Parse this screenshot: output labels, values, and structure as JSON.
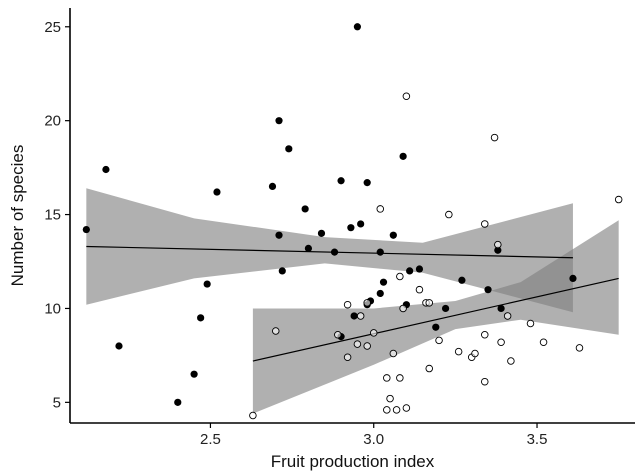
{
  "chart_data": {
    "type": "scatter",
    "xlabel": "Fruit production index",
    "ylabel": "Number of species",
    "xlim": [
      2.07,
      3.8
    ],
    "ylim": [
      3.9,
      26.0
    ],
    "x_ticks": [
      2.5,
      3.0,
      3.5
    ],
    "x_tick_labels": [
      "2.5",
      "3.0",
      "3.5"
    ],
    "y_ticks": [
      5,
      10,
      15,
      20,
      25
    ],
    "y_tick_labels": [
      "5",
      "10",
      "15",
      "20",
      "25"
    ],
    "grid": false,
    "legend": "none",
    "series": [
      {
        "marker": "filled-circle",
        "color": "#000000",
        "points": [
          [
            2.12,
            14.2
          ],
          [
            2.18,
            17.4
          ],
          [
            2.22,
            8.0
          ],
          [
            2.4,
            5.0
          ],
          [
            2.45,
            6.5
          ],
          [
            2.47,
            9.5
          ],
          [
            2.49,
            11.3
          ],
          [
            2.52,
            16.2
          ],
          [
            2.69,
            16.5
          ],
          [
            2.71,
            20.0
          ],
          [
            2.71,
            13.9
          ],
          [
            2.72,
            12.0
          ],
          [
            2.74,
            18.5
          ],
          [
            2.79,
            15.3
          ],
          [
            2.8,
            13.2
          ],
          [
            2.84,
            14.0
          ],
          [
            2.88,
            13.0
          ],
          [
            2.9,
            16.8
          ],
          [
            2.9,
            8.5
          ],
          [
            2.93,
            14.3
          ],
          [
            2.94,
            9.6
          ],
          [
            2.95,
            25.0
          ],
          [
            2.96,
            14.5
          ],
          [
            2.98,
            16.7
          ],
          [
            2.98,
            10.2
          ],
          [
            2.99,
            10.4
          ],
          [
            3.02,
            13.0
          ],
          [
            3.02,
            10.8
          ],
          [
            3.03,
            11.4
          ],
          [
            3.06,
            13.9
          ],
          [
            3.09,
            18.1
          ],
          [
            3.1,
            10.2
          ],
          [
            3.11,
            12.0
          ],
          [
            3.14,
            12.1
          ],
          [
            3.19,
            9.0
          ],
          [
            3.22,
            10.0
          ],
          [
            3.27,
            11.5
          ],
          [
            3.35,
            11.0
          ],
          [
            3.38,
            13.1
          ],
          [
            3.39,
            10.0
          ],
          [
            3.61,
            11.6
          ]
        ]
      },
      {
        "marker": "open-circle",
        "color": "#000000",
        "points": [
          [
            2.63,
            4.3
          ],
          [
            2.7,
            8.8
          ],
          [
            2.92,
            10.2
          ],
          [
            2.89,
            8.6
          ],
          [
            2.92,
            7.4
          ],
          [
            2.95,
            8.1
          ],
          [
            2.96,
            9.6
          ],
          [
            2.98,
            10.3
          ],
          [
            2.98,
            8.0
          ],
          [
            3.0,
            8.7
          ],
          [
            3.02,
            15.3
          ],
          [
            3.04,
            6.3
          ],
          [
            3.04,
            4.6
          ],
          [
            3.05,
            5.2
          ],
          [
            3.06,
            7.6
          ],
          [
            3.07,
            4.6
          ],
          [
            3.08,
            11.7
          ],
          [
            3.08,
            6.3
          ],
          [
            3.09,
            10.0
          ],
          [
            3.1,
            21.3
          ],
          [
            3.1,
            4.7
          ],
          [
            3.14,
            11.0
          ],
          [
            3.16,
            10.3
          ],
          [
            3.17,
            10.3
          ],
          [
            3.17,
            6.8
          ],
          [
            3.2,
            8.3
          ],
          [
            3.23,
            15.0
          ],
          [
            3.26,
            7.7
          ],
          [
            3.3,
            7.4
          ],
          [
            3.31,
            7.6
          ],
          [
            3.34,
            8.6
          ],
          [
            3.34,
            6.1
          ],
          [
            3.34,
            14.5
          ],
          [
            3.37,
            19.1
          ],
          [
            3.38,
            13.4
          ],
          [
            3.39,
            8.2
          ],
          [
            3.41,
            9.6
          ],
          [
            3.42,
            7.2
          ],
          [
            3.48,
            9.2
          ],
          [
            3.52,
            8.2
          ],
          [
            3.63,
            7.9
          ],
          [
            3.75,
            15.8
          ]
        ]
      }
    ],
    "fit_lines": [
      {
        "x": [
          2.12,
          3.61
        ],
        "y": [
          13.3,
          12.7
        ]
      },
      {
        "x": [
          2.63,
          3.75
        ],
        "y": [
          7.2,
          11.6
        ]
      }
    ],
    "confidence_bands": [
      {
        "x": [
          2.12,
          2.45,
          2.85,
          3.15,
          3.61
        ],
        "lower": [
          10.2,
          11.6,
          12.4,
          11.9,
          9.8
        ],
        "upper": [
          16.4,
          14.8,
          13.8,
          13.5,
          15.6
        ]
      },
      {
        "x": [
          2.63,
          3.0,
          3.25,
          3.45,
          3.75
        ],
        "lower": [
          4.4,
          7.0,
          8.9,
          9.4,
          8.6
        ],
        "upper": [
          10.0,
          10.0,
          10.4,
          11.4,
          14.7
        ]
      }
    ]
  }
}
